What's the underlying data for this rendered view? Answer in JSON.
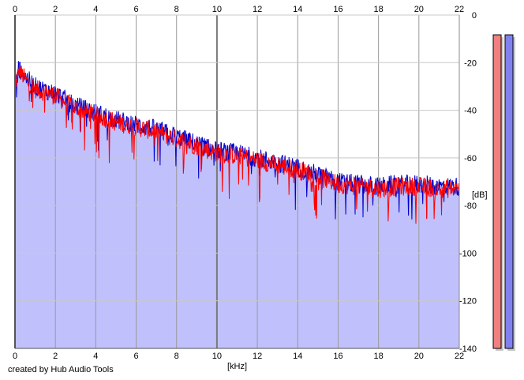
{
  "credit": "created by Hub Audio Tools",
  "colors": {
    "fill": "#c0c0fc",
    "channel_left": "#ff0000",
    "channel_right": "#0000cc",
    "grid": "#9a9a9a",
    "meter_left": "#f08080",
    "meter_right": "#8080ee"
  },
  "chart_data": {
    "type": "line",
    "title": "",
    "xlabel": "[kHz]",
    "ylabel": "[dB]",
    "xlim": [
      0,
      22
    ],
    "ylim": [
      -140,
      0
    ],
    "x_ticks": [
      "0",
      "2",
      "4",
      "6",
      "8",
      "10",
      "12",
      "14",
      "16",
      "18",
      "20",
      "22"
    ],
    "y_ticks": [
      "0",
      "-20",
      "-40",
      "-60",
      "-80",
      "-100",
      "-120",
      "-140"
    ],
    "grid": true,
    "legend": "none",
    "series": [
      {
        "color": "#ff0000",
        "envelope": {
          "x": [
            0,
            0.2,
            0.5,
            1,
            2,
            3,
            4,
            5,
            6,
            7,
            8,
            9,
            10,
            11,
            12,
            13,
            14,
            15,
            16,
            17,
            18,
            19,
            20,
            21,
            22
          ],
          "y": [
            -30,
            -23,
            -27,
            -31,
            -34,
            -39,
            -42,
            -45,
            -47,
            -49,
            -52,
            -55,
            -58,
            -59,
            -61,
            -63,
            -65,
            -68,
            -71,
            -72,
            -73,
            -72,
            -72,
            -73,
            -73
          ]
        }
      },
      {
        "color": "#0000cc",
        "envelope": {
          "x": [
            0,
            0.2,
            0.5,
            1,
            2,
            3,
            4,
            5,
            6,
            7,
            8,
            9,
            10,
            11,
            12,
            13,
            14,
            15,
            16,
            17,
            18,
            19,
            20,
            21,
            22
          ],
          "y": [
            -30,
            -22,
            -26,
            -30,
            -33,
            -38,
            -41,
            -44,
            -46,
            -48,
            -51,
            -54,
            -57,
            -58,
            -60,
            -62,
            -64,
            -67,
            -70,
            -71,
            -72,
            -71,
            -71,
            -72,
            -72
          ]
        }
      }
    ],
    "level_meters": [
      {
        "channel": "left",
        "level_db": -4
      },
      {
        "channel": "right",
        "level_db": -4
      }
    ]
  }
}
